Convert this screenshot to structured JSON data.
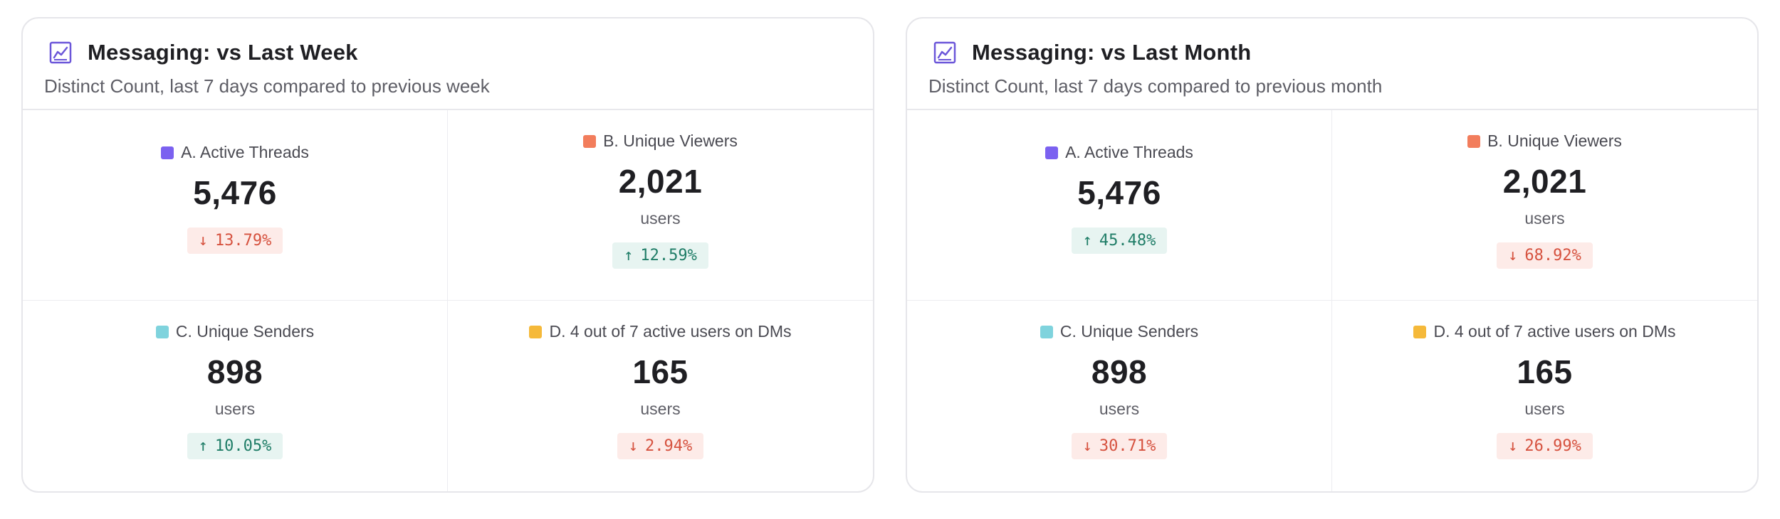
{
  "colors": {
    "swatch_a": "#7b61f0",
    "swatch_b": "#f27d5c",
    "swatch_c": "#7fd3dd",
    "swatch_d": "#f5b93a",
    "icon_purple": "#6b56d9"
  },
  "cards": [
    {
      "title": "Messaging: vs Last Week",
      "subtitle": "Distinct Count, last 7 days compared to previous week",
      "metrics": [
        {
          "label": "A. Active Threads",
          "value": "5,476",
          "unit": "",
          "change": "13.79%",
          "direction": "down",
          "arrow": "↓"
        },
        {
          "label": "B. Unique Viewers",
          "value": "2,021",
          "unit": "users",
          "change": "12.59%",
          "direction": "up",
          "arrow": "↑"
        },
        {
          "label": "C. Unique Senders",
          "value": "898",
          "unit": "users",
          "change": "10.05%",
          "direction": "up",
          "arrow": "↑"
        },
        {
          "label": "D. 4 out of 7 active users on DMs",
          "value": "165",
          "unit": "users",
          "change": "2.94%",
          "direction": "down",
          "arrow": "↓"
        }
      ]
    },
    {
      "title": "Messaging: vs Last Month",
      "subtitle": "Distinct Count, last 7 days compared to previous month",
      "metrics": [
        {
          "label": "A. Active Threads",
          "value": "5,476",
          "unit": "",
          "change": "45.48%",
          "direction": "up",
          "arrow": "↑"
        },
        {
          "label": "B. Unique Viewers",
          "value": "2,021",
          "unit": "users",
          "change": "68.92%",
          "direction": "down",
          "arrow": "↓"
        },
        {
          "label": "C. Unique Senders",
          "value": "898",
          "unit": "users",
          "change": "30.71%",
          "direction": "down",
          "arrow": "↓"
        },
        {
          "label": "D. 4 out of 7 active users on DMs",
          "value": "165",
          "unit": "users",
          "change": "26.99%",
          "direction": "down",
          "arrow": "↓"
        }
      ]
    }
  ]
}
